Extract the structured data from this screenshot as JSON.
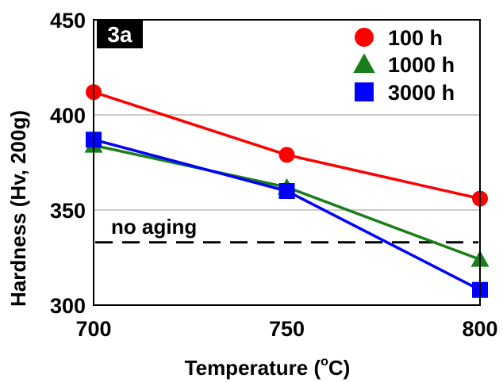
{
  "chart_data": {
    "type": "line",
    "panel_label": "3a",
    "xlabel": "Temperature (",
    "xlabel_unit": "o",
    "xlabel_unit_tail": "C)",
    "ylabel": "Hardness (Hv, 200g)",
    "x": [
      700,
      750,
      800
    ],
    "xlim": [
      700,
      800
    ],
    "ylim": [
      300,
      450
    ],
    "x_ticks": [
      "700",
      "750",
      "800"
    ],
    "y_ticks": [
      "300",
      "350",
      "400",
      "450"
    ],
    "grid": "horizontal",
    "legend_position": "top-right",
    "series": [
      {
        "name": "100 h",
        "values": [
          412,
          379,
          356
        ],
        "color": "#ff0000",
        "marker": "circle"
      },
      {
        "name": "1000 h",
        "values": [
          384,
          362,
          324
        ],
        "color": "#1a7f1a",
        "marker": "triangle"
      },
      {
        "name": "3000 h",
        "values": [
          387,
          360,
          308
        ],
        "color": "#0000ff",
        "marker": "square"
      }
    ],
    "reference_line": {
      "label": "no aging",
      "value": 333
    }
  }
}
